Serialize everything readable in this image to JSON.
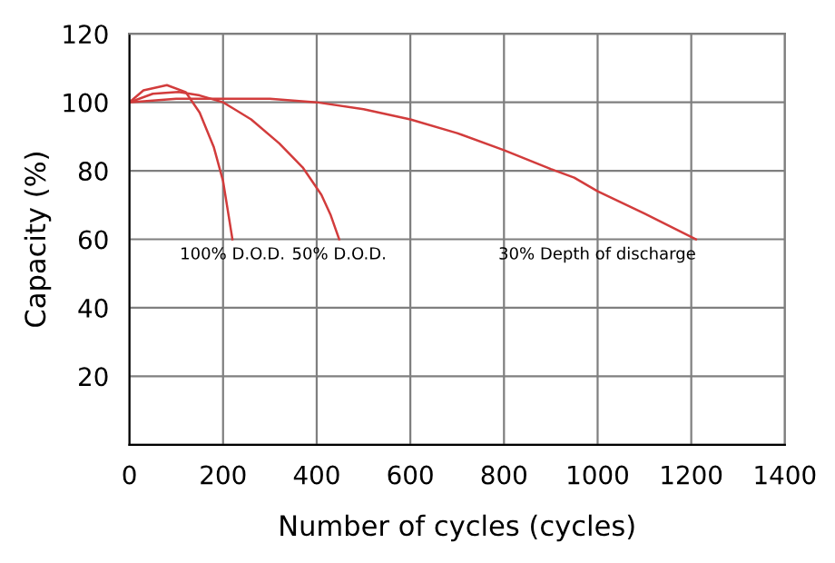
{
  "chart_data": {
    "type": "line",
    "xlabel": "Number of cycles (cycles)",
    "ylabel": "Capacity (%)",
    "xlim": [
      0,
      1400
    ],
    "ylim": [
      0,
      120
    ],
    "xticks": [
      0,
      200,
      400,
      600,
      800,
      1000,
      1200,
      1400
    ],
    "yticks": [
      {
        "value": 0,
        "label": null
      },
      20,
      40,
      60,
      80,
      100,
      120
    ],
    "grid": true,
    "marker": "none",
    "line_style": "solid",
    "series": [
      {
        "color": "#d23c3c",
        "x": [
          0,
          30,
          80,
          120,
          150,
          180,
          200,
          220
        ],
        "values": [
          100,
          103.5,
          105,
          103,
          97,
          87,
          77,
          60
        ]
      },
      {
        "color": "#d23c3c",
        "x": [
          0,
          50,
          105,
          150,
          200,
          260,
          320,
          370,
          410,
          430,
          448
        ],
        "values": [
          100,
          102.5,
          103,
          102,
          100,
          95,
          88,
          81,
          73,
          67,
          60
        ]
      },
      {
        "color": "#d23c3c",
        "x": [
          0,
          100,
          200,
          300,
          400,
          500,
          600,
          700,
          800,
          900,
          950,
          1000,
          1100,
          1210
        ],
        "values": [
          100,
          101,
          101,
          101,
          100,
          98,
          95,
          91,
          86,
          80.5,
          78,
          74,
          67.5,
          60
        ]
      }
    ],
    "annotations": [
      {
        "text": "100% D.O.D.",
        "x": 220,
        "y": 60
      },
      {
        "text": "50% D.O.D.",
        "x": 448,
        "y": 60
      },
      {
        "text": "30% Depth of discharge",
        "x": 1210,
        "y": 60
      }
    ]
  }
}
